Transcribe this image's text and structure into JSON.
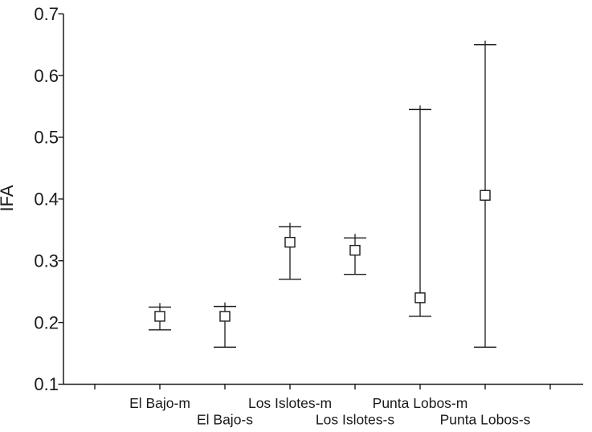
{
  "chart_data": {
    "type": "scatter",
    "title": "",
    "xlabel": "",
    "ylabel": "IFA",
    "ylim": [
      0.1,
      0.7
    ],
    "yticks": [
      0.1,
      0.2,
      0.3,
      0.4,
      0.5,
      0.6,
      0.7
    ],
    "ytick_labels": [
      "0.1",
      "0.2",
      "0.3",
      "0.4",
      "0.5",
      "0.6",
      "0.7"
    ],
    "grid": false,
    "legend": "none",
    "marker": "open-square",
    "error_bars": "min-max whiskers with end caps",
    "x_tick_count": 8,
    "points": [
      {
        "label": "El Bajo-m",
        "label_row": "top",
        "mean": 0.21,
        "upper": 0.225,
        "lower": 0.188
      },
      {
        "label": "El Bajo-s",
        "label_row": "bottom",
        "mean": 0.21,
        "upper": 0.226,
        "lower": 0.16
      },
      {
        "label": "Los Islotes-m",
        "label_row": "top",
        "mean": 0.33,
        "upper": 0.355,
        "lower": 0.27
      },
      {
        "label": "Los Islotes-s",
        "label_row": "bottom",
        "mean": 0.317,
        "upper": 0.337,
        "lower": 0.278
      },
      {
        "label": "Punta Lobos-m",
        "label_row": "top",
        "mean": 0.24,
        "upper": 0.545,
        "lower": 0.21
      },
      {
        "label": "Punta Lobos-s",
        "label_row": "bottom",
        "mean": 0.406,
        "upper": 0.65,
        "lower": 0.16
      }
    ],
    "colors": {
      "background": "#ffffff",
      "line": "#1b1b1b",
      "marker_fill": "#ffffff",
      "text": "#1a1a1a"
    }
  }
}
